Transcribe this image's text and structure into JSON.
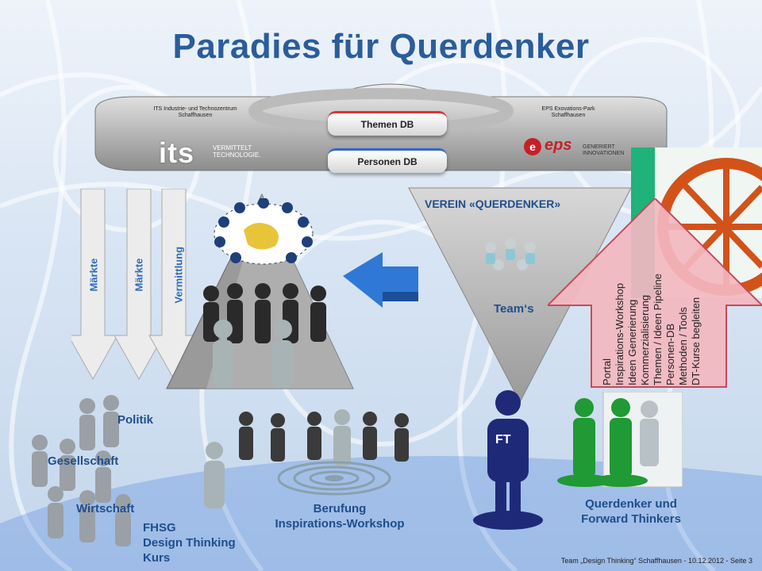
{
  "title": "Paradies für Querdenker",
  "hub": {
    "left_caption": "ITS Industrie- und Technozentrum\nSchaffhausen",
    "left_logo": "its",
    "left_tagline": "VERMITTELT\nTECHNOLOGIE.",
    "right_caption": "EPS Exovations-Park\nSchaffhausen",
    "right_logo": "eps",
    "right_tagline": "GENERIERT\nINNOVATIONEN",
    "db_top": "Themen DB",
    "db_bottom": "Personen DB"
  },
  "arrows": [
    "Märkte",
    "Märkte",
    "Vermittlung"
  ],
  "verein": {
    "title": "VEREIN «QUERDENKER»",
    "teams": "Team‘s"
  },
  "pink_arrow_lines": [
    "Portal",
    "Inspirations-Workshop",
    "Ideen Generierung",
    "Kommerzialisierung",
    "Themen / Ideen Pipeline",
    "Personen-DB",
    "Methoden / Tools",
    "DT-Kurse begleiten"
  ],
  "labels": {
    "politik": "Politik",
    "gesellschaft": "Gesellschaft",
    "wirtschaft": "Wirtschaft",
    "fhsg": "FHSG\nDesign Thinking\nKurs",
    "berufung": "Berufung\nInspirations-Workshop",
    "ft": "FT",
    "querdenker": "Querdenker und\nForward Thinkers"
  },
  "footer": "Team „Design Thinking“ Schaffhausen - 10.12.2012 - Seite 3",
  "colors": {
    "title": "#2a5d9a",
    "label": "#1f4e8c",
    "arrow_text": "#2f6bbd",
    "pink_arrow": "#f3b7c0",
    "figure_gray": "#9aa0a6",
    "figure_green": "#1f9a35",
    "figure_navy": "#1e2a78"
  }
}
